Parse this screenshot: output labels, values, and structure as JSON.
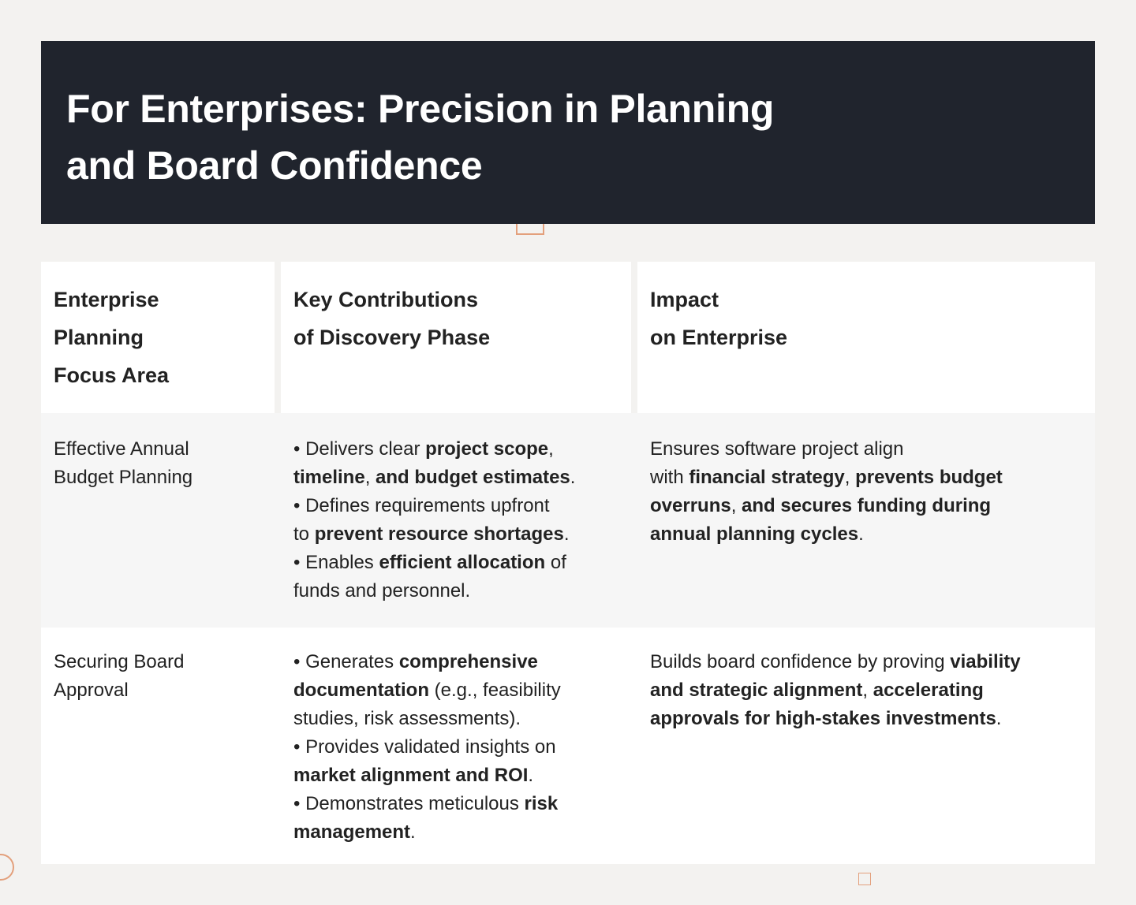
{
  "title": "For Enterprises: Precision in Planning and Board Confidence",
  "table": {
    "headers": [
      [
        "Enterprise",
        "Planning",
        "Focus Area"
      ],
      [
        "Key Contributions",
        "of Discovery Phase"
      ],
      [
        "Impact",
        "on Enterprise"
      ]
    ],
    "rows": [
      {
        "focus": [
          "Effective Annual",
          "Budget Planning"
        ],
        "contributions": [
          [
            "• Delivers clear ",
            "project scope",
            ","
          ],
          [
            "",
            "timeline",
            ", ",
            "and budget estimates",
            "."
          ],
          [
            "• Defines requirements upfront"
          ],
          [
            "to ",
            "prevent resource shortages",
            "."
          ],
          [
            "• Enables ",
            "efficient allocation",
            " of"
          ],
          [
            "funds and personnel."
          ]
        ],
        "impact": [
          [
            "Ensures software project align"
          ],
          [
            "with ",
            "financial strategy",
            ", ",
            "prevents budget"
          ],
          [
            "",
            "overruns",
            ", ",
            "and secures funding during"
          ],
          [
            "",
            "annual planning cycles",
            "."
          ]
        ]
      },
      {
        "focus": [
          "Securing Board",
          "Approval"
        ],
        "contributions": [
          [
            "• Generates ",
            "comprehensive"
          ],
          [
            "",
            "documentation",
            " (e.g., feasibility"
          ],
          [
            "studies, risk assessments)."
          ],
          [
            "• Provides validated insights on"
          ],
          [
            "",
            "market alignment and ROI",
            "."
          ],
          [
            "• Demonstrates meticulous ",
            "risk"
          ],
          [
            "",
            "management",
            "."
          ]
        ],
        "impact": [
          [
            "Builds board confidence by proving ",
            "viability"
          ],
          [
            "",
            "and strategic alignment",
            ", ",
            "accelerating"
          ],
          [
            "",
            "approvals for high-stakes investments",
            "."
          ]
        ]
      }
    ]
  }
}
